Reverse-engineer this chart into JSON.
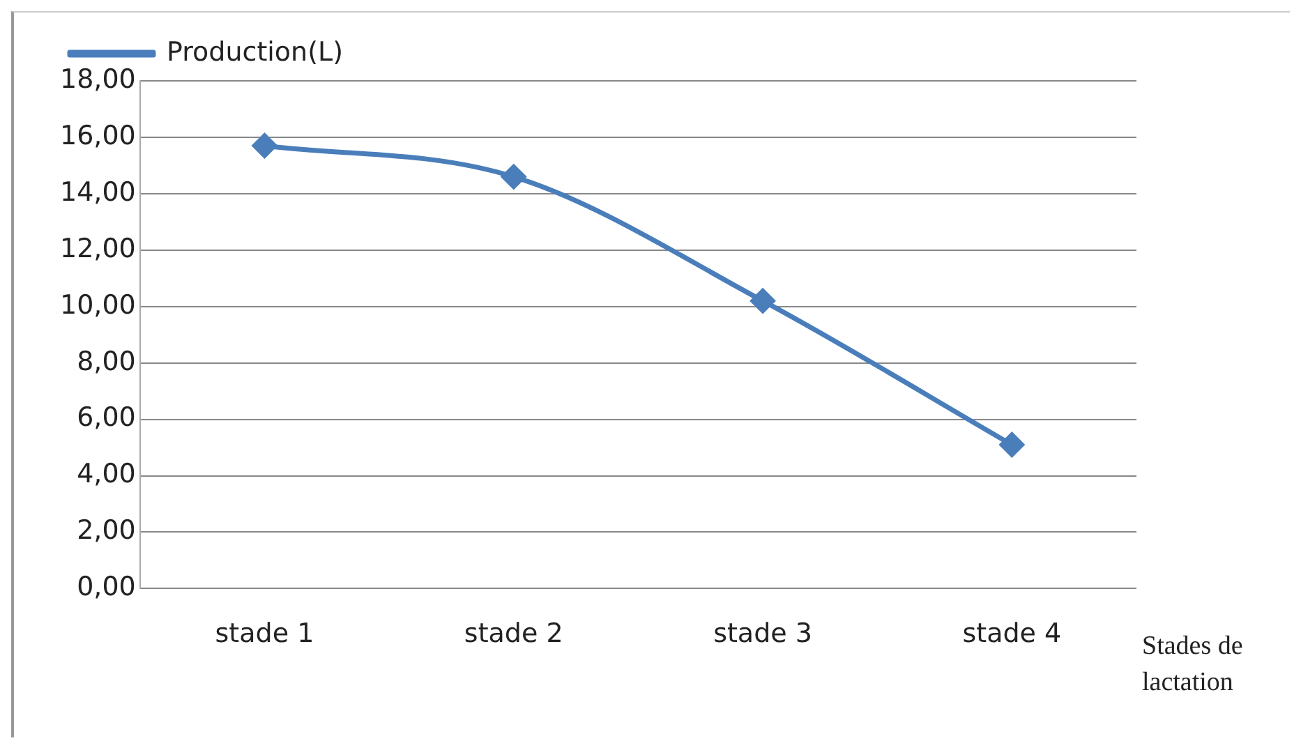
{
  "chart_data": {
    "type": "line",
    "xlabel": "Stades de lactation",
    "categories": [
      "stade 1",
      "stade 2",
      "stade 3",
      "stade 4"
    ],
    "series": [
      {
        "name": "Production(L)",
        "color": "#4a7ebb",
        "values": [
          15.7,
          14.6,
          10.2,
          5.1
        ]
      }
    ],
    "ylim": [
      0,
      18
    ],
    "yticks": [
      {
        "value": 0,
        "label": "0,00"
      },
      {
        "value": 2,
        "label": "2,00"
      },
      {
        "value": 4,
        "label": "4,00"
      },
      {
        "value": 6,
        "label": "6,00"
      },
      {
        "value": 8,
        "label": "8,00"
      },
      {
        "value": 10,
        "label": "10,00"
      },
      {
        "value": 12,
        "label": "12,00"
      },
      {
        "value": 14,
        "label": "14,00"
      },
      {
        "value": 16,
        "label": "16,00"
      },
      {
        "value": 18,
        "label": "18,00"
      }
    ],
    "grid": "y",
    "legend": "top left",
    "marker": "diamond",
    "line_style": "solid"
  }
}
